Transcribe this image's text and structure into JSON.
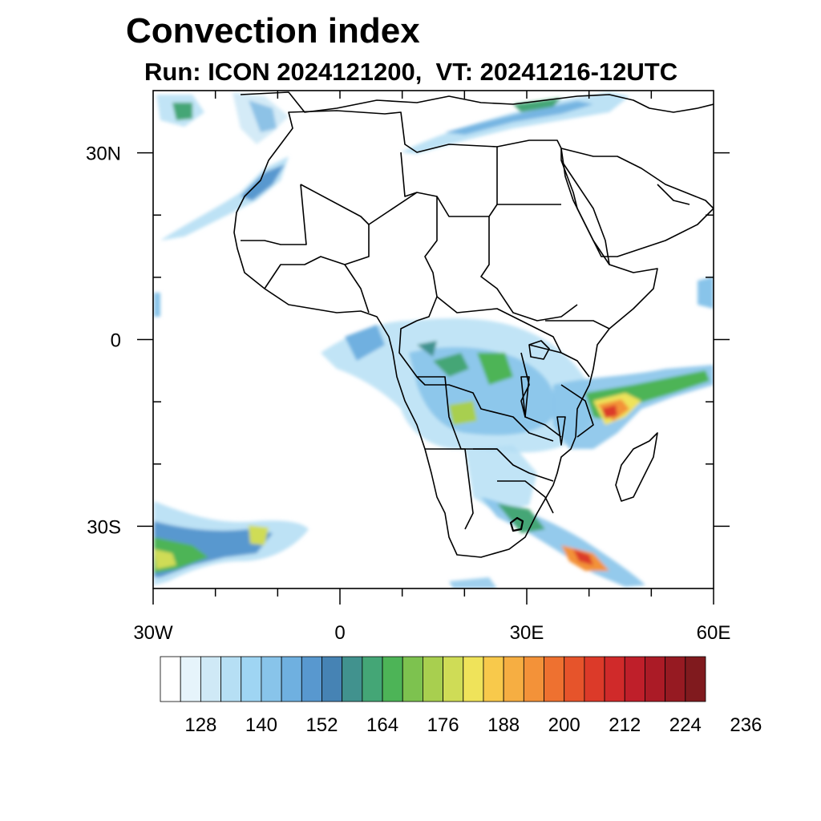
{
  "title": "Convection index",
  "subtitle": "Run: ICON 2024121200,  VT: 20241216-12UTC",
  "map": {
    "lon_range": [
      -30,
      60
    ],
    "lat_range": [
      -40,
      40
    ],
    "lat_labels": [
      "30N",
      "0",
      "30S"
    ],
    "lat_values": [
      30,
      0,
      -30
    ],
    "lon_labels": [
      "30W",
      "0",
      "30E",
      "60E"
    ],
    "lon_values": [
      -30,
      0,
      30,
      60
    ]
  },
  "colorbar": {
    "colors": [
      "#ffffff",
      "#e6f4fb",
      "#cfe9f6",
      "#b6dff4",
      "#9fd5f3",
      "#88c4ea",
      "#6fb0e0",
      "#5898cf",
      "#4683b4",
      "#41928e",
      "#44a676",
      "#4db457",
      "#7dc24f",
      "#a8cf4f",
      "#cfdc56",
      "#efe35a",
      "#f8c94b",
      "#f6ae42",
      "#f39239",
      "#ee7130",
      "#e6542b",
      "#dc3a29",
      "#d02a2a",
      "#bf1f2a",
      "#ab1b26",
      "#961a22",
      "#801a1e"
    ],
    "labels": [
      "128",
      "140",
      "152",
      "164",
      "176",
      "188",
      "200",
      "212",
      "224",
      "236"
    ]
  }
}
